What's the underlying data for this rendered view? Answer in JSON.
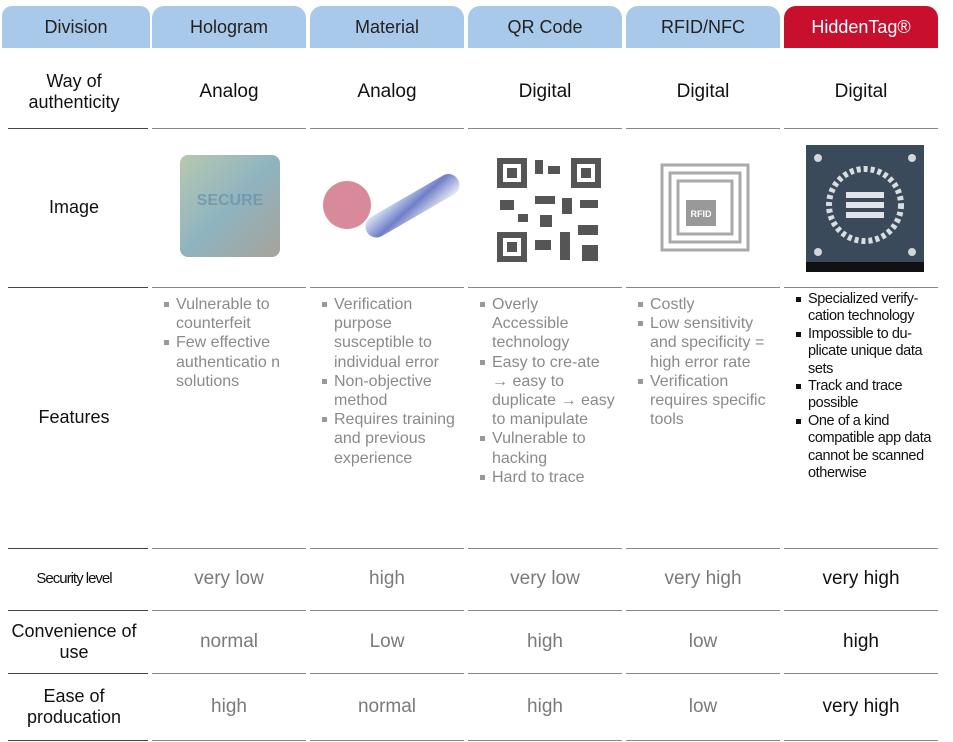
{
  "table": {
    "header": [
      "Division",
      "Hologram",
      "Material",
      "QR Code",
      "RFID/NFC",
      "HiddenTag®"
    ],
    "rows": [
      {
        "label": "Way of authenticity",
        "cells": [
          "Analog",
          "Analog",
          "Digital",
          "Digital",
          "Digital"
        ]
      },
      {
        "label": "Image"
      },
      {
        "label": "Features",
        "cells": [
          [
            "Vulnerable to counterfeit",
            "Few effective authenticatio n solutions"
          ],
          [
            "Verification purpose susceptible to individual error",
            "Non-objective method",
            "Requires training and previous experience"
          ],
          [
            "Overly Accessible technology",
            "Easy to cre-ate → easy to duplicate → easy to manipulate",
            "Vulnerable to hacking",
            "Hard to trace"
          ],
          [
            "Costly",
            "Low sensitivity and specificity = high error rate",
            "Verification requires specific tools"
          ],
          [
            "Specialized verify-cation technology",
            "Impossible to du-plicate unique data sets",
            "Track and trace possible",
            "One of a kind compatible app data cannot be scanned otherwise"
          ]
        ]
      },
      {
        "label": "Security level",
        "cells": [
          "very low",
          "high",
          "very low",
          "very high",
          "very high"
        ]
      },
      {
        "label": "Convenience of use",
        "cells": [
          "normal",
          "Low",
          "high",
          "low",
          "high"
        ]
      },
      {
        "label": "Ease of producation",
        "cells": [
          "high",
          "normal",
          "high",
          "low",
          "very high"
        ]
      }
    ]
  }
}
